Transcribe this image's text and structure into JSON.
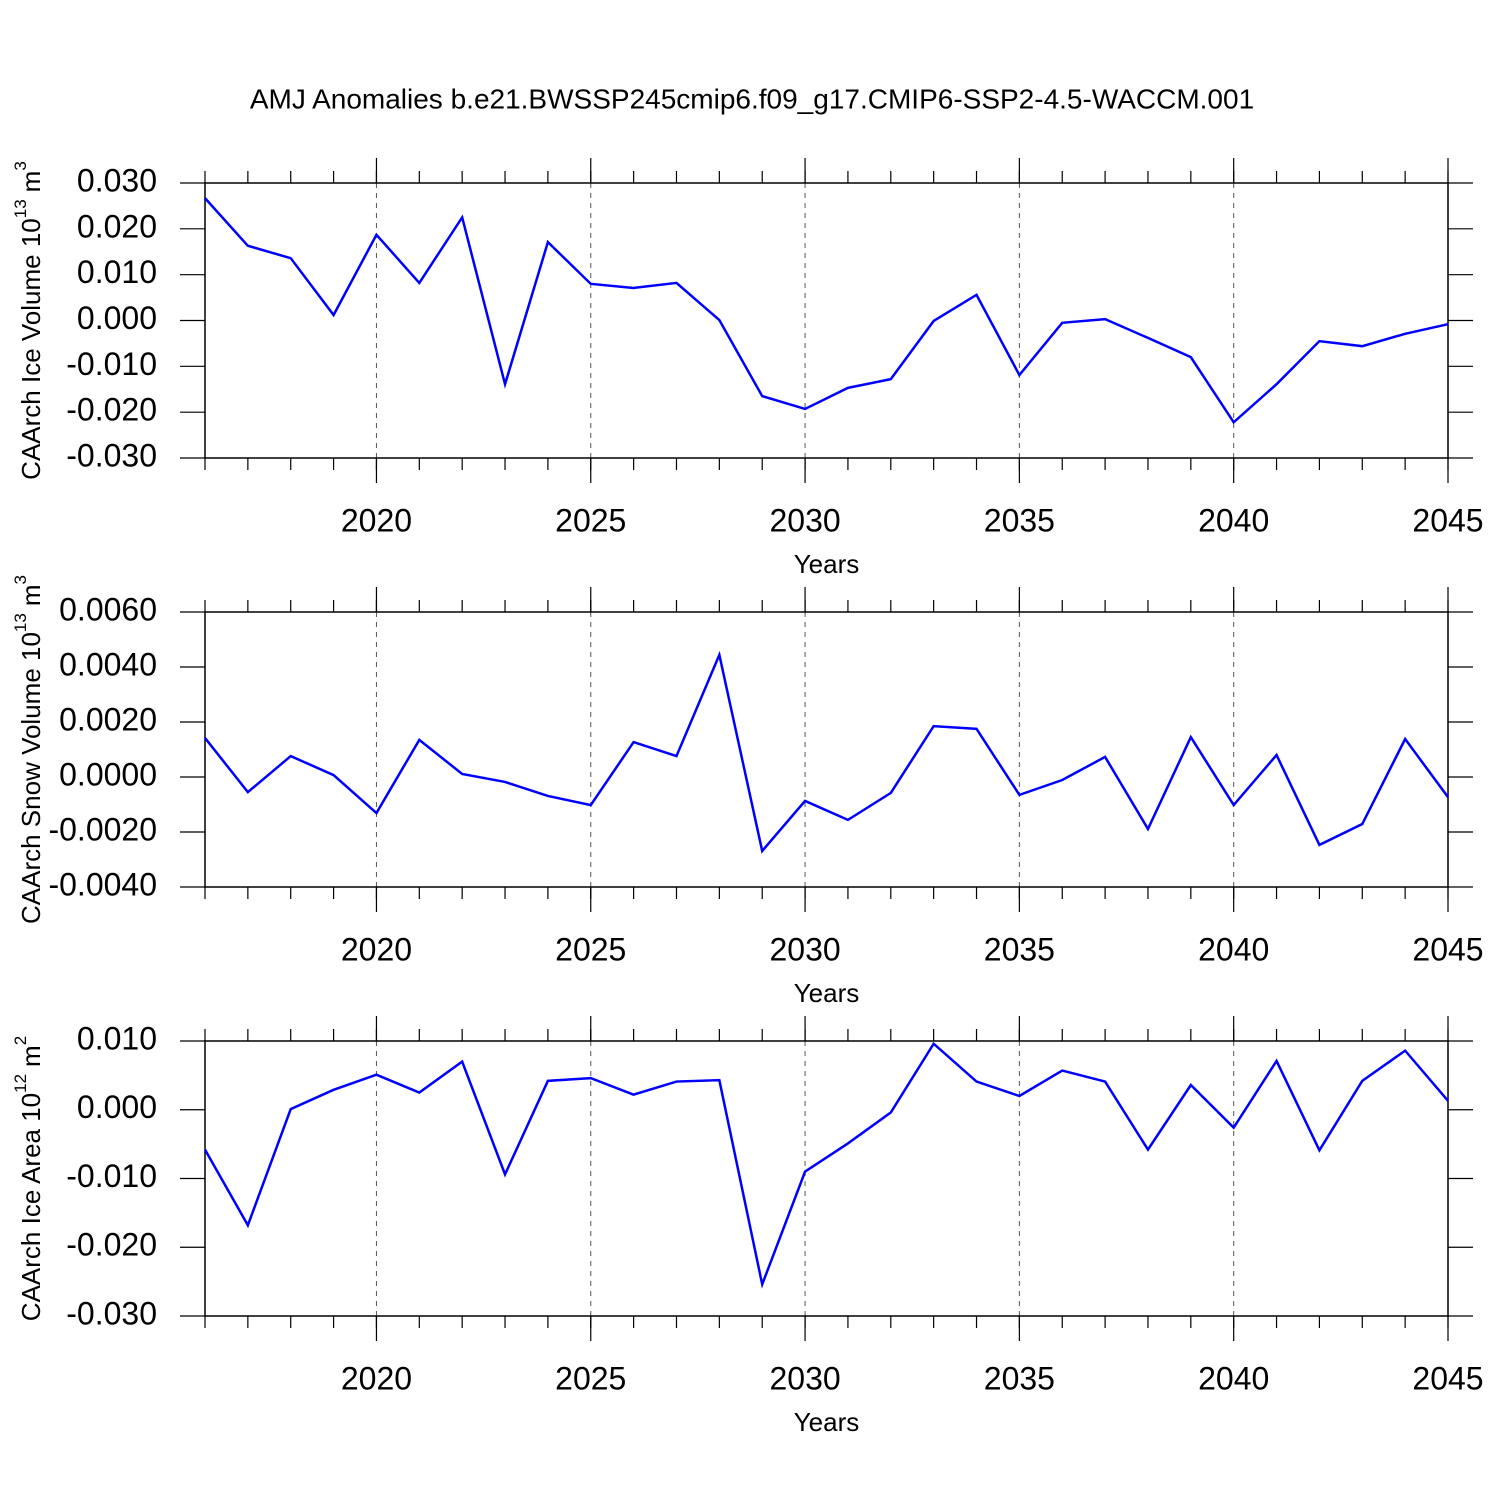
{
  "chart_data": [
    {
      "type": "line",
      "title": "AMJ Anomalies b.e21.BWSSP245cmip6.f09_g17.CMIP6-SSP2-4.5-WACCM.001",
      "xlabel": "Years",
      "ylabel": {
        "text": "CAArch Ice Volume 10",
        "power": "13",
        "unit": "m",
        "unit_power": "3"
      },
      "x": [
        2016,
        2017,
        2018,
        2019,
        2020,
        2021,
        2022,
        2023,
        2024,
        2025,
        2026,
        2027,
        2028,
        2029,
        2030,
        2031,
        2032,
        2033,
        2034,
        2035,
        2036,
        2037,
        2038,
        2039,
        2040,
        2041,
        2042,
        2043,
        2044,
        2045
      ],
      "values": [
        0.0267,
        0.0163,
        0.0136,
        0.0012,
        0.0187,
        0.0082,
        0.0225,
        -0.0139,
        0.0171,
        0.008,
        0.0071,
        0.0082,
        0.0001,
        -0.0165,
        -0.0193,
        -0.0147,
        -0.0128,
        -0.0001,
        0.0056,
        -0.0119,
        -0.0005,
        0.0003,
        -0.0038,
        -0.008,
        -0.0222,
        -0.0139,
        -0.0045,
        -0.0056,
        -0.0029,
        -0.0008
      ],
      "color": "#0000ff",
      "xlim": [
        2016,
        2045
      ],
      "xticks": [
        2020,
        2025,
        2030,
        2035,
        2040,
        2045
      ],
      "ylim": [
        -0.03,
        0.03
      ],
      "yticks": [
        {
          "value": -0.03,
          "label": "-0.030"
        },
        {
          "value": -0.02,
          "label": "-0.020"
        },
        {
          "value": -0.01,
          "label": "-0.010"
        },
        {
          "value": 0,
          "label": "0.000"
        },
        {
          "value": 0.01,
          "label": "0.010"
        },
        {
          "value": 0.02,
          "label": "0.020"
        },
        {
          "value": 0.03,
          "label": "0.030"
        }
      ],
      "grid": true
    },
    {
      "type": "line",
      "xlabel": "Years",
      "ylabel": {
        "text": "CAArch Snow Volume 10",
        "power": "13",
        "unit": "m",
        "unit_power": "3"
      },
      "x": [
        2016,
        2017,
        2018,
        2019,
        2020,
        2021,
        2022,
        2023,
        2024,
        2025,
        2026,
        2027,
        2028,
        2029,
        2030,
        2031,
        2032,
        2033,
        2034,
        2035,
        2036,
        2037,
        2038,
        2039,
        2040,
        2041,
        2042,
        2043,
        2044,
        2045
      ],
      "values": [
        0.00142,
        -0.00055,
        0.00076,
        7e-05,
        -0.00131,
        0.00135,
        0.00011,
        -0.00018,
        -0.00069,
        -0.00102,
        0.00127,
        0.00076,
        0.00444,
        -0.00269,
        -0.00087,
        -0.00156,
        -0.00058,
        0.00185,
        0.00175,
        -0.00065,
        -0.00011,
        0.00073,
        -0.00189,
        0.00145,
        -0.00102,
        0.0008,
        -0.00247,
        -0.00171,
        0.00138,
        -0.00073
      ],
      "color": "#0000ff",
      "xlim": [
        2016,
        2045
      ],
      "xticks": [
        2020,
        2025,
        2030,
        2035,
        2040,
        2045
      ],
      "ylim": [
        -0.004,
        0.006
      ],
      "yticks": [
        {
          "value": -0.004,
          "label": "-0.0040"
        },
        {
          "value": -0.002,
          "label": "-0.0020"
        },
        {
          "value": 0,
          "label": "0.0000"
        },
        {
          "value": 0.002,
          "label": "0.0020"
        },
        {
          "value": 0.004,
          "label": "0.0040"
        },
        {
          "value": 0.006,
          "label": "0.0060"
        }
      ],
      "grid": true
    },
    {
      "type": "line",
      "xlabel": "Years",
      "ylabel": {
        "text": "CAArch Ice Area 10",
        "power": "12",
        "unit": "m",
        "unit_power": "2"
      },
      "x": [
        2016,
        2017,
        2018,
        2019,
        2020,
        2021,
        2022,
        2023,
        2024,
        2025,
        2026,
        2027,
        2028,
        2029,
        2030,
        2031,
        2032,
        2033,
        2034,
        2035,
        2036,
        2037,
        2038,
        2039,
        2040,
        2041,
        2042,
        2043,
        2044,
        2045
      ],
      "values": [
        -0.0058,
        -0.0168,
        0.0001,
        0.0029,
        0.0051,
        0.0025,
        0.007,
        -0.0094,
        0.0042,
        0.0046,
        0.0022,
        0.0041,
        0.0043,
        -0.0254,
        -0.009,
        -0.0049,
        -0.0004,
        0.0096,
        0.0041,
        0.002,
        0.0057,
        0.0041,
        -0.0058,
        0.0036,
        -0.0026,
        0.0071,
        -0.0059,
        0.0042,
        0.0086,
        0.0013
      ],
      "color": "#0000ff",
      "xlim": [
        2016,
        2045
      ],
      "xticks": [
        2020,
        2025,
        2030,
        2035,
        2040,
        2045
      ],
      "ylim": [
        -0.03,
        0.01
      ],
      "yticks": [
        {
          "value": -0.03,
          "label": "-0.030"
        },
        {
          "value": -0.02,
          "label": "-0.020"
        },
        {
          "value": -0.01,
          "label": "-0.010"
        },
        {
          "value": 0,
          "label": "0.000"
        },
        {
          "value": 0.01,
          "label": "0.010"
        }
      ],
      "grid": true
    }
  ]
}
